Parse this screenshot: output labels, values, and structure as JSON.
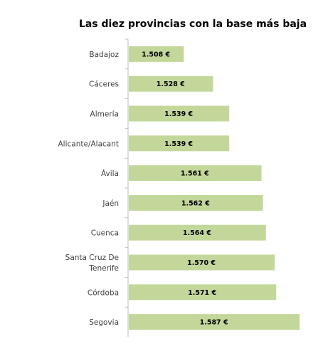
{
  "chart_data": {
    "type": "bar",
    "orientation": "horizontal",
    "title": "Las diez provincias con la base más baja",
    "xlabel": "",
    "ylabel": "",
    "categories": [
      "Badajoz",
      "Cáceres",
      "Almería",
      "Alicante/Alacant",
      "Ávila",
      "Jaén",
      "Cuenca",
      "Santa Cruz De Tenerife",
      "Córdoba",
      "Segovia"
    ],
    "category_lines": [
      [
        "Badajoz"
      ],
      [
        "Cáceres"
      ],
      [
        "Almería"
      ],
      [
        "Alicante/Alacant"
      ],
      [
        "Ávila"
      ],
      [
        "Jaén"
      ],
      [
        "Cuenca"
      ],
      [
        "Santa Cruz De",
        "Tenerife"
      ],
      [
        "Córdoba"
      ],
      [
        "Segovia"
      ]
    ],
    "values": [
      1508,
      1528,
      1539,
      1539,
      1561,
      1562,
      1564,
      1570,
      1571,
      1587
    ],
    "value_labels": [
      "1.508 €",
      "1.528 €",
      "1.539 €",
      "1.539 €",
      "1.561 €",
      "1.562 €",
      "1.564 €",
      "1.570 €",
      "1.571 €",
      "1.587 €"
    ],
    "xlim": [
      1470,
      1600
    ],
    "grid": false,
    "legend": "none",
    "bar_color": "#c4d79b",
    "axis_color": "#bfbfbf"
  }
}
